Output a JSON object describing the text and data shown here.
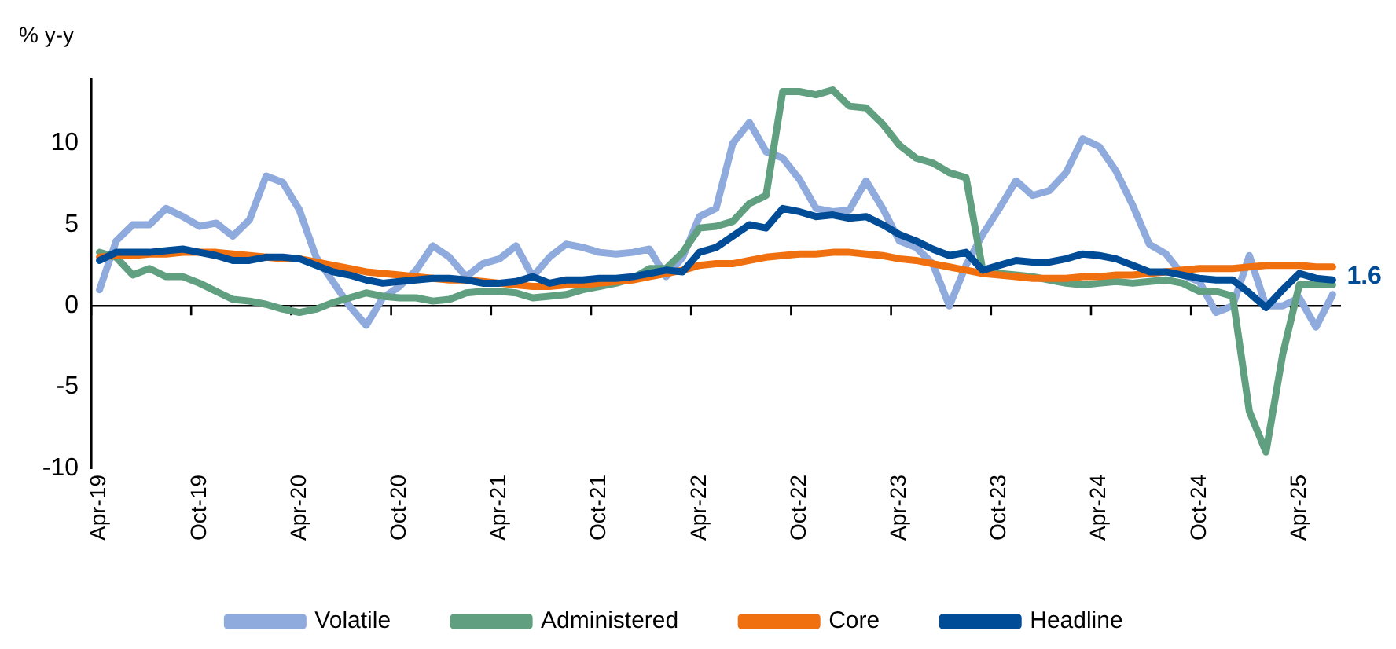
{
  "chart_data": {
    "type": "line",
    "ylabel": "% y-y",
    "categories": [
      "Apr-19",
      null,
      null,
      null,
      null,
      null,
      "Oct-19",
      null,
      null,
      null,
      null,
      null,
      "Apr-20",
      null,
      null,
      null,
      null,
      null,
      "Oct-20",
      null,
      null,
      null,
      null,
      null,
      "Apr-21",
      null,
      null,
      null,
      null,
      null,
      "Oct-21",
      null,
      null,
      null,
      null,
      null,
      "Apr-22",
      null,
      null,
      null,
      null,
      null,
      "Oct-22",
      null,
      null,
      null,
      null,
      null,
      "Apr-23",
      null,
      null,
      null,
      null,
      null,
      "Oct-23",
      null,
      null,
      null,
      null,
      null,
      "Apr-24",
      null,
      null,
      null,
      null,
      null,
      "Oct-24",
      null,
      null,
      null,
      null,
      null,
      "Apr-25",
      null,
      null
    ],
    "series": [
      {
        "name": "Volatile",
        "color": "#8faadc",
        "values": [
          1.0,
          4.0,
          5.0,
          5.0,
          6.0,
          5.5,
          4.9,
          5.1,
          4.3,
          5.3,
          8.0,
          7.6,
          5.9,
          3.0,
          1.5,
          0.0,
          -1.2,
          0.5,
          1.2,
          2.2,
          3.7,
          3.0,
          1.8,
          2.6,
          2.9,
          3.7,
          1.8,
          3.0,
          3.8,
          3.6,
          3.3,
          3.2,
          3.3,
          3.5,
          1.8,
          3.0,
          5.5,
          6.0,
          10.0,
          11.3,
          9.5,
          9.1,
          7.8,
          6.0,
          5.8,
          5.9,
          7.7,
          6.0,
          4.0,
          3.6,
          2.6,
          0.0,
          2.5,
          4.4,
          6.0,
          7.7,
          6.8,
          7.1,
          8.2,
          10.3,
          9.8,
          8.3,
          6.2,
          3.8,
          3.2,
          1.9,
          1.5,
          -0.4,
          0.0,
          3.1,
          0.0,
          0.0,
          0.5,
          -1.3,
          0.7
        ]
      },
      {
        "name": "Administered",
        "color": "#60a080",
        "values": [
          3.3,
          3.0,
          1.9,
          2.3,
          1.8,
          1.8,
          1.4,
          0.9,
          0.4,
          0.3,
          0.1,
          -0.2,
          -0.4,
          -0.2,
          0.2,
          0.5,
          0.8,
          0.6,
          0.5,
          0.5,
          0.3,
          0.4,
          0.8,
          0.9,
          0.9,
          0.8,
          0.5,
          0.6,
          0.7,
          1.0,
          1.2,
          1.4,
          1.7,
          2.3,
          2.3,
          3.3,
          4.8,
          4.9,
          5.2,
          6.3,
          6.8,
          13.2,
          13.2,
          13.0,
          13.3,
          12.3,
          12.2,
          11.2,
          9.9,
          9.1,
          8.8,
          8.2,
          7.9,
          2.2,
          2.0,
          1.9,
          1.8,
          1.6,
          1.4,
          1.3,
          1.4,
          1.5,
          1.4,
          1.5,
          1.6,
          1.4,
          0.9,
          0.9,
          0.6,
          -6.5,
          -9.0,
          -3.0,
          1.3,
          1.3,
          1.3
        ]
      },
      {
        "name": "Core",
        "color": "#f07010",
        "values": [
          3.0,
          3.1,
          3.1,
          3.2,
          3.2,
          3.3,
          3.3,
          3.3,
          3.2,
          3.1,
          3.0,
          2.9,
          2.9,
          2.7,
          2.5,
          2.3,
          2.1,
          2.0,
          1.9,
          1.8,
          1.7,
          1.6,
          1.6,
          1.5,
          1.4,
          1.3,
          1.2,
          1.2,
          1.3,
          1.3,
          1.4,
          1.5,
          1.6,
          1.8,
          2.0,
          2.2,
          2.5,
          2.6,
          2.6,
          2.8,
          3.0,
          3.1,
          3.2,
          3.2,
          3.3,
          3.3,
          3.2,
          3.1,
          2.9,
          2.8,
          2.6,
          2.4,
          2.2,
          2.0,
          1.9,
          1.8,
          1.7,
          1.7,
          1.7,
          1.8,
          1.8,
          1.9,
          1.9,
          2.0,
          2.1,
          2.2,
          2.3,
          2.3,
          2.3,
          2.4,
          2.5,
          2.5,
          2.5,
          2.4,
          2.4
        ]
      },
      {
        "name": "Headline",
        "color": "#004c97",
        "values": [
          2.8,
          3.3,
          3.3,
          3.3,
          3.4,
          3.5,
          3.3,
          3.1,
          2.8,
          2.8,
          3.0,
          3.0,
          2.9,
          2.5,
          2.1,
          1.9,
          1.6,
          1.4,
          1.5,
          1.6,
          1.7,
          1.7,
          1.6,
          1.4,
          1.4,
          1.5,
          1.8,
          1.4,
          1.6,
          1.6,
          1.7,
          1.7,
          1.8,
          2.0,
          2.2,
          2.1,
          3.3,
          3.6,
          4.3,
          5.0,
          4.8,
          6.0,
          5.8,
          5.5,
          5.6,
          5.4,
          5.5,
          5.0,
          4.4,
          4.0,
          3.5,
          3.1,
          3.3,
          2.2,
          2.5,
          2.8,
          2.7,
          2.7,
          2.9,
          3.2,
          3.1,
          2.9,
          2.5,
          2.1,
          2.1,
          1.9,
          1.7,
          1.6,
          1.6,
          0.8,
          -0.1,
          1.0,
          2.0,
          1.7,
          1.6
        ],
        "value_labels": [
          null,
          null,
          null,
          null,
          null,
          null,
          null,
          null,
          null,
          null,
          null,
          null,
          null,
          null,
          null,
          null,
          null,
          null,
          null,
          null,
          null,
          null,
          null,
          null,
          null,
          null,
          null,
          null,
          null,
          null,
          null,
          null,
          null,
          null,
          null,
          null,
          null,
          null,
          null,
          null,
          null,
          null,
          null,
          null,
          null,
          null,
          null,
          null,
          null,
          null,
          null,
          null,
          null,
          null,
          null,
          null,
          null,
          null,
          null,
          null,
          null,
          null,
          null,
          null,
          null,
          null,
          null,
          null,
          null,
          null,
          null,
          null,
          null,
          null,
          "1.6"
        ]
      }
    ],
    "ref_lines": [
      {
        "axis": "y",
        "value": 0,
        "color": "#000000",
        "line_style": "solid"
      }
    ],
    "ylim": [
      -10,
      14
    ],
    "yticks": [
      -10,
      -5,
      0,
      5,
      10
    ],
    "grid": false,
    "legend": "bottom",
    "marker": "none",
    "line_style": "solid"
  }
}
